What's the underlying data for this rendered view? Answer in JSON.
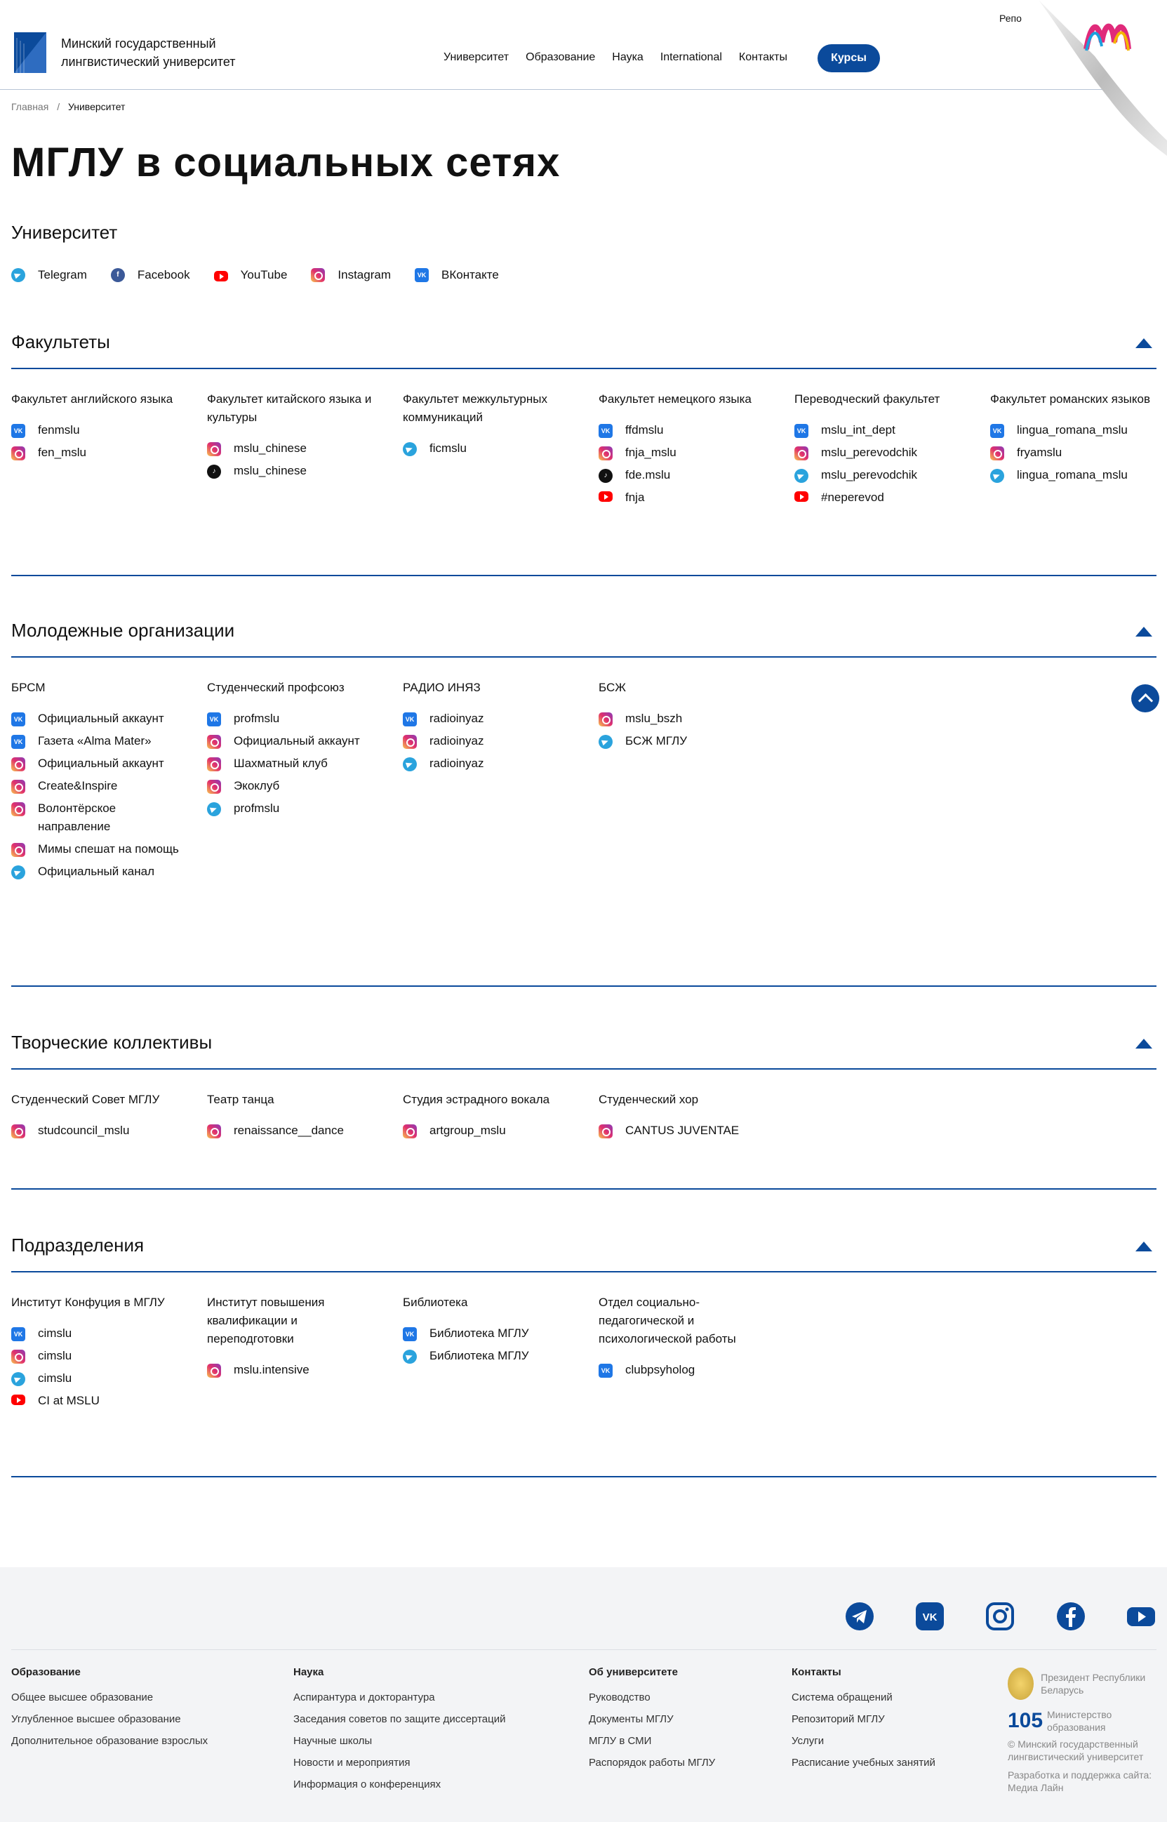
{
  "header": {
    "logo_line1": "Минский государственный",
    "logo_line2": "лингвистический университет",
    "nav": [
      "Университет",
      "Образование",
      "Наука",
      "International",
      "Контакты"
    ],
    "courses": "Курсы",
    "repo": "Репо"
  },
  "breadcrumbs": {
    "home": "Главная",
    "sep": "/",
    "current": "Университет"
  },
  "page_title": "МГЛУ в социальных сетях",
  "university": {
    "title": "Университет",
    "links": [
      {
        "icon": "telegram-icon",
        "label": "Telegram"
      },
      {
        "icon": "facebook-icon",
        "label": "Facebook"
      },
      {
        "icon": "youtube-icon",
        "label": "YouTube"
      },
      {
        "icon": "instagram-icon",
        "label": "Instagram"
      },
      {
        "icon": "vk-icon",
        "label": "ВКонтакте"
      }
    ]
  },
  "sections": [
    {
      "title": "Факультеты",
      "columns": [
        {
          "title": "Факультет английского языка",
          "items": [
            {
              "icon": "vk",
              "label": "fenmslu"
            },
            {
              "icon": "ig",
              "label": "fen_mslu"
            }
          ]
        },
        {
          "title": "Факультет китайского языка и культуры",
          "items": [
            {
              "icon": "ig",
              "label": "mslu_chinese"
            },
            {
              "icon": "tt",
              "label": "mslu_chinese"
            }
          ]
        },
        {
          "title": "Факультет межкультурных коммуникаций",
          "items": [
            {
              "icon": "tg",
              "label": "ficmslu"
            }
          ]
        },
        {
          "title": "Факультет немецкого языка",
          "items": [
            {
              "icon": "vk",
              "label": "ffdmslu"
            },
            {
              "icon": "ig",
              "label": "fnja_mslu"
            },
            {
              "icon": "tt",
              "label": "fde.mslu"
            },
            {
              "icon": "yt",
              "label": "fnja"
            }
          ]
        },
        {
          "title": "Переводческий факультет",
          "items": [
            {
              "icon": "vk",
              "label": "mslu_int_dept"
            },
            {
              "icon": "ig",
              "label": "mslu_perevodchik"
            },
            {
              "icon": "tg",
              "label": "mslu_perevodchik"
            },
            {
              "icon": "yt",
              "label": "#neperevod"
            }
          ]
        },
        {
          "title": "Факультет романских языков",
          "items": [
            {
              "icon": "vk",
              "label": "lingua_romana_mslu"
            },
            {
              "icon": "ig",
              "label": "fryamslu"
            },
            {
              "icon": "tg",
              "label": "lingua_romana_mslu"
            }
          ]
        }
      ]
    },
    {
      "title": "Молодежные организации",
      "columns": [
        {
          "title": "БРСМ",
          "items": [
            {
              "icon": "vk",
              "label": "Официальный аккаунт"
            },
            {
              "icon": "vk",
              "label": "Газета «Alma Mater»"
            },
            {
              "icon": "ig",
              "label": "Официальный аккаунт"
            },
            {
              "icon": "ig",
              "label": "Create&Inspire"
            },
            {
              "icon": "ig",
              "label": "Волонтёрское направление"
            },
            {
              "icon": "ig",
              "label": "Мимы спешат на помощь"
            },
            {
              "icon": "tg",
              "label": "Официальный канал"
            }
          ]
        },
        {
          "title": "Студенческий профсоюз",
          "items": [
            {
              "icon": "vk",
              "label": "profmslu"
            },
            {
              "icon": "ig",
              "label": "Официальный аккаунт"
            },
            {
              "icon": "ig",
              "label": "Шахматный клуб"
            },
            {
              "icon": "ig",
              "label": "Экоклуб"
            },
            {
              "icon": "tg",
              "label": "profmslu"
            }
          ]
        },
        {
          "title": "РАДИО ИНЯЗ",
          "items": [
            {
              "icon": "vk",
              "label": "radioinyaz"
            },
            {
              "icon": "ig",
              "label": "radioinyaz"
            },
            {
              "icon": "tg",
              "label": "radioinyaz"
            }
          ]
        },
        {
          "title": "БСЖ",
          "items": [
            {
              "icon": "ig",
              "label": "mslu_bszh"
            },
            {
              "icon": "tg",
              "label": "БСЖ МГЛУ"
            }
          ]
        }
      ]
    },
    {
      "title": "Творческие коллективы",
      "columns": [
        {
          "title": "Студенческий Совет МГЛУ",
          "items": [
            {
              "icon": "ig",
              "label": "studcouncil_mslu"
            }
          ]
        },
        {
          "title": "Театр танца",
          "items": [
            {
              "icon": "ig",
              "label": "renaissance__dance"
            }
          ]
        },
        {
          "title": "Студия эстрадного вокала",
          "items": [
            {
              "icon": "ig",
              "label": "artgroup_mslu"
            }
          ]
        },
        {
          "title": "Студенческий хор",
          "items": [
            {
              "icon": "ig",
              "label": "CANTUS JUVENTAE"
            }
          ]
        }
      ]
    },
    {
      "title": "Подразделения",
      "columns": [
        {
          "title": "Институт Конфуция в МГЛУ",
          "items": [
            {
              "icon": "vk",
              "label": "cimslu"
            },
            {
              "icon": "ig",
              "label": "cimslu"
            },
            {
              "icon": "tg",
              "label": "cimslu"
            },
            {
              "icon": "yt",
              "label": "CI at MSLU"
            }
          ]
        },
        {
          "title": "Институт повышения квалификации и переподготовки",
          "items": [
            {
              "icon": "ig",
              "label": "mslu.intensive"
            }
          ]
        },
        {
          "title": "Библиотека",
          "items": [
            {
              "icon": "vk",
              "label": "Библиотека МГЛУ"
            },
            {
              "icon": "tg",
              "label": "Библиотека МГЛУ"
            }
          ]
        },
        {
          "title": "Отдел социально-педагогической и психологической работы",
          "items": [
            {
              "icon": "vk",
              "label": "clubpsyholog"
            }
          ]
        }
      ]
    }
  ],
  "footer": {
    "cols": [
      {
        "title": "Образование",
        "links": [
          "Общее высшее образование",
          "Углубленное высшее образование",
          "Дополнительное образование взрослых"
        ]
      },
      {
        "title": "Наука",
        "links": [
          "Аспирантура и докторантура",
          "Заседания советов по защите диссертаций",
          "Научные школы",
          "Новости и мероприятия",
          "Информация о конференциях"
        ]
      },
      {
        "title": "Об университете",
        "links": [
          "Руководство",
          "Документы МГЛУ",
          "МГЛУ в СМИ",
          "Распорядок работы МГЛУ"
        ]
      },
      {
        "title": "Контакты",
        "links": [
          "Система обращений",
          "Репозиторий МГЛУ",
          "Услуги",
          "Расписание учебных занятий"
        ]
      }
    ],
    "president": "Президент Республики Беларусь",
    "ministry_logo_text": "105",
    "ministry": "Министерство образования",
    "copyright": "© Минский государственный лингвистический университет",
    "dev": "Разработка и поддержка сайта: Медиа Лайн"
  }
}
